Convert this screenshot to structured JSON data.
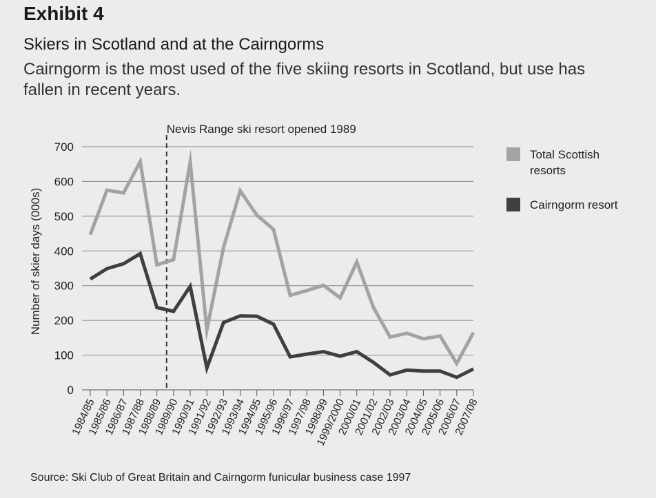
{
  "header": {
    "exhibit": "Exhibit 4",
    "title": "Skiers in Scotland and at the Cairngorms",
    "subtitle": "Cairngorm is the most used of the five skiing resorts in Scotland, but use has fallen in recent years."
  },
  "source": "Source: Ski Club of Great Britain and Cairngorm funicular business case 1997",
  "chart_data": {
    "type": "line",
    "title": "Skiers in Scotland and at the Cairngorms",
    "ylabel": "Number of skier days (000s)",
    "xlabel": "",
    "ylim": [
      0,
      700
    ],
    "yticks": [
      0,
      100,
      200,
      300,
      400,
      500,
      600,
      700
    ],
    "grid": true,
    "legend_position": "right",
    "categories": [
      "1984/85",
      "1985/86",
      "1986/87",
      "1987/88",
      "1988/89",
      "1989/90",
      "1990/91",
      "1991/92",
      "1992/93",
      "1993/94",
      "1994/95",
      "1995/96",
      "1996/97",
      "1997/98",
      "1998/99",
      "1999/2000",
      "2000/01",
      "2001/02",
      "2002/03",
      "2003/04",
      "2004/05",
      "2005/06",
      "2006/07",
      "2007/08"
    ],
    "series": [
      {
        "name": "Total Scottish resorts",
        "color": "#a3a3a3",
        "values": [
          447,
          575,
          567,
          657,
          360,
          375,
          656,
          173,
          410,
          573,
          503,
          462,
          272,
          286,
          301,
          265,
          368,
          237,
          152,
          163,
          147,
          155,
          76,
          165
        ]
      },
      {
        "name": "Cairngorm resort",
        "color": "#3f3f3f",
        "values": [
          319,
          349,
          363,
          392,
          237,
          226,
          298,
          63,
          194,
          213,
          212,
          189,
          95,
          103,
          110,
          97,
          110,
          79,
          43,
          57,
          54,
          54,
          36,
          60
        ]
      }
    ],
    "annotation": {
      "text": "Nevis Range ski resort opened 1989",
      "at_category": "1989/90"
    }
  }
}
